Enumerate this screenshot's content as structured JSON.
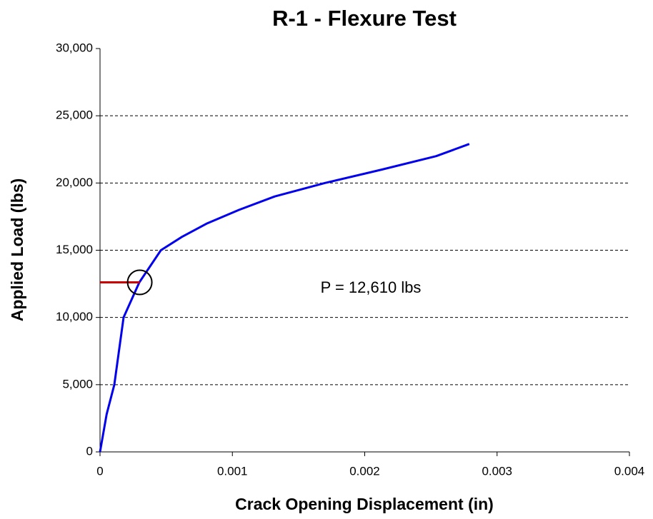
{
  "chart_data": {
    "type": "line",
    "title": "R-1 - Flexure Test",
    "x_label": "Crack Opening Displacement (in)",
    "y_label": "Applied Load (lbs)",
    "x": [
      0,
      5e-05,
      0.000108,
      0.000178,
      0.000297,
      0.00046,
      0.00062,
      0.00081,
      0.00105,
      0.00132,
      0.0017,
      0.00213,
      0.00254,
      0.00279
    ],
    "series": [
      {
        "name": "R-1",
        "color": "#0000ee",
        "values": [
          0,
          2800,
          5000,
          10000,
          12610,
          15000,
          16000,
          17000,
          18000,
          19000,
          20000,
          21000,
          22000,
          22900
        ]
      }
    ],
    "marker": {
      "x": 0.0003,
      "y": 12610,
      "color": "#cc0000"
    },
    "annotation": "P = 12,610 lbs",
    "xlim": [
      0,
      0.004
    ],
    "xticks": [
      0,
      0.001,
      0.002,
      0.003,
      0.004
    ],
    "ylim": [
      0,
      30000
    ],
    "yticks": [
      0,
      {
        "value": 5000,
        "label": "5,000"
      },
      {
        "value": 10000,
        "label": "10,000"
      },
      {
        "value": 15000,
        "label": "15,000"
      },
      {
        "value": 20000,
        "label": "20,000"
      },
      {
        "value": 25000,
        "label": "25,000"
      },
      {
        "value": 30000,
        "label": "30,000"
      }
    ],
    "grid": true
  }
}
